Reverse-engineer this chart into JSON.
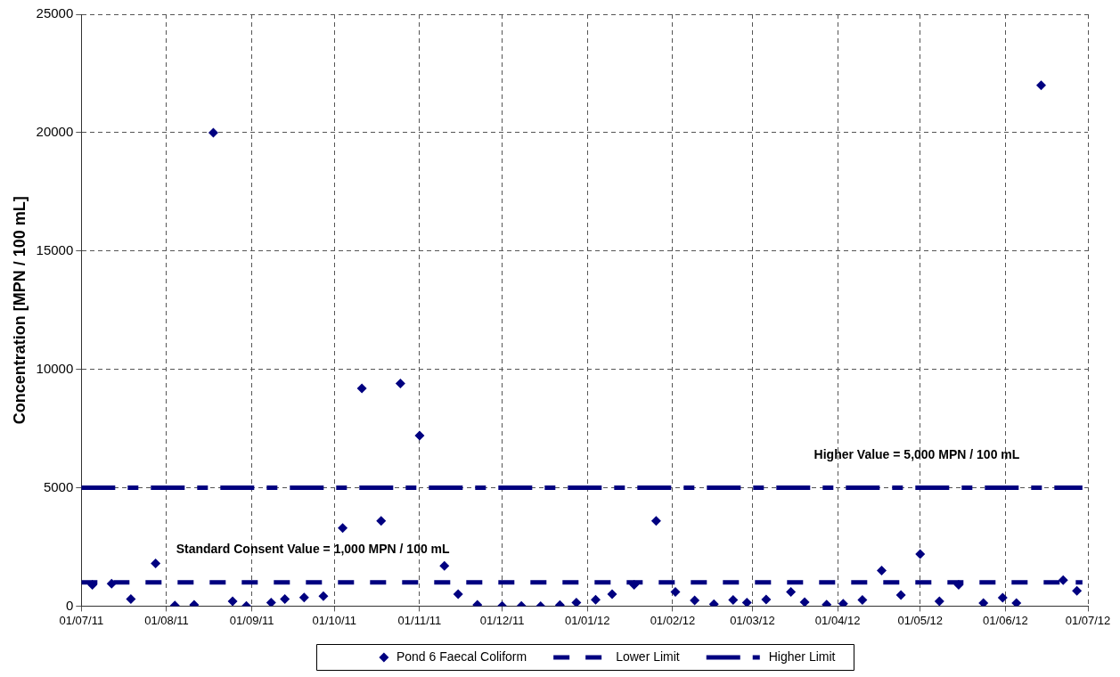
{
  "chart_data": {
    "type": "scatter",
    "ylabel": "Concentration [MPN / 100 mL]",
    "xlim": [
      "2011-07-01",
      "2012-07-01"
    ],
    "xticks": [
      {
        "value": "2011-07-01",
        "label": "01/07/11"
      },
      {
        "value": "2011-08-01",
        "label": "01/08/11"
      },
      {
        "value": "2011-09-01",
        "label": "01/09/11"
      },
      {
        "value": "2011-10-01",
        "label": "01/10/11"
      },
      {
        "value": "2011-11-01",
        "label": "01/11/11"
      },
      {
        "value": "2011-12-01",
        "label": "01/12/11"
      },
      {
        "value": "2012-01-01",
        "label": "01/01/12"
      },
      {
        "value": "2012-02-01",
        "label": "01/02/12"
      },
      {
        "value": "2012-03-01",
        "label": "01/03/12"
      },
      {
        "value": "2012-04-01",
        "label": "01/04/12"
      },
      {
        "value": "2012-05-01",
        "label": "01/05/12"
      },
      {
        "value": "2012-06-01",
        "label": "01/06/12"
      },
      {
        "value": "2012-07-01",
        "label": "01/07/12"
      }
    ],
    "ylim": [
      0,
      25000
    ],
    "yticks": [
      0,
      5000,
      10000,
      15000,
      20000,
      25000
    ],
    "grid": true,
    "legend": "bottom",
    "series": [
      {
        "name": "Pond 6 Faecal Coliform",
        "color": "#000080",
        "marker": "diamond",
        "x": [
          "2011-07-05",
          "2011-07-12",
          "2011-07-19",
          "2011-07-28",
          "2011-08-04",
          "2011-08-11",
          "2011-08-18",
          "2011-08-25",
          "2011-08-30",
          "2011-09-08",
          "2011-09-13",
          "2011-09-20",
          "2011-09-27",
          "2011-10-04",
          "2011-10-11",
          "2011-10-18",
          "2011-10-25",
          "2011-11-01",
          "2011-11-10",
          "2011-11-15",
          "2011-11-22",
          "2011-12-01",
          "2011-12-08",
          "2011-12-15",
          "2011-12-22",
          "2011-12-28",
          "2012-01-04",
          "2012-01-10",
          "2012-01-18",
          "2012-01-26",
          "2012-02-02",
          "2012-02-09",
          "2012-02-16",
          "2012-02-23",
          "2012-02-28",
          "2012-03-06",
          "2012-03-15",
          "2012-03-20",
          "2012-03-28",
          "2012-04-03",
          "2012-04-10",
          "2012-04-17",
          "2012-04-24",
          "2012-05-01",
          "2012-05-08",
          "2012-05-15",
          "2012-05-24",
          "2012-05-31",
          "2012-06-05",
          "2012-06-14",
          "2012-06-22",
          "2012-06-27"
        ],
        "values": [
          900,
          950,
          300,
          1800,
          20,
          50,
          20000,
          200,
          10,
          150,
          300,
          360,
          420,
          3300,
          9200,
          3600,
          9400,
          7200,
          1700,
          500,
          50,
          10,
          10,
          0,
          40,
          150,
          270,
          500,
          900,
          3600,
          600,
          240,
          80,
          260,
          150,
          280,
          600,
          170,
          60,
          100,
          260,
          1500,
          470,
          2200,
          200,
          900,
          130,
          350,
          130,
          22000,
          1100,
          650
        ]
      },
      {
        "name": "Lower Limit",
        "type": "line",
        "color": "#000080",
        "line_style": "dashed",
        "x": [
          "2011-07-01",
          "2012-06-29"
        ],
        "values": [
          1000,
          1000
        ]
      },
      {
        "name": "Higher Limit",
        "type": "line",
        "color": "#000080",
        "line_style": "dashdot",
        "x": [
          "2011-07-01",
          "2012-06-29"
        ],
        "values": [
          5000,
          5000
        ]
      }
    ],
    "annotations": [
      "Standard Consent Value = 1,000 MPN / 100 mL",
      "Higher Value = 5,000 MPN / 100 mL"
    ]
  }
}
